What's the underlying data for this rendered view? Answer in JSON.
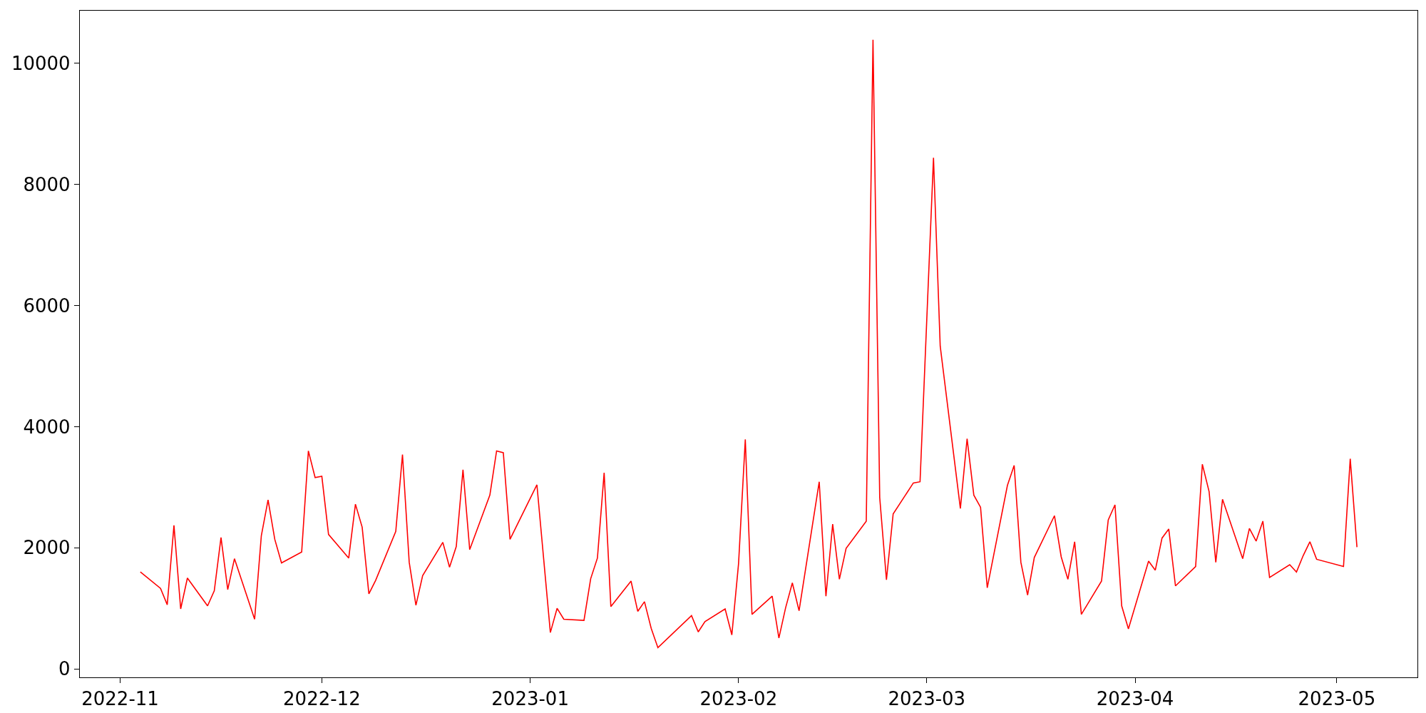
{
  "chart_data": {
    "type": "line",
    "grid": false,
    "marker": "none",
    "line_style": "solid",
    "xlim": [
      "2022-10-26",
      "2023-05-13"
    ],
    "xticks": [
      {
        "value": "2022-11-01",
        "label": "2022-11"
      },
      {
        "value": "2022-12-01",
        "label": "2022-12"
      },
      {
        "value": "2023-01-01",
        "label": "2023-01"
      },
      {
        "value": "2023-02-01",
        "label": "2023-02"
      },
      {
        "value": "2023-03-01",
        "label": "2023-03"
      },
      {
        "value": "2023-04-01",
        "label": "2023-04"
      },
      {
        "value": "2023-05-01",
        "label": "2023-05"
      }
    ],
    "ylim": [
      -140,
      10870
    ],
    "yticks": [
      0,
      2000,
      4000,
      6000,
      8000,
      10000
    ],
    "x": [
      "2022-11-04",
      "2022-11-07",
      "2022-11-08",
      "2022-11-09",
      "2022-11-10",
      "2022-11-11",
      "2022-11-14",
      "2022-11-15",
      "2022-11-16",
      "2022-11-17",
      "2022-11-18",
      "2022-11-21",
      "2022-11-22",
      "2022-11-23",
      "2022-11-24",
      "2022-11-25",
      "2022-11-28",
      "2022-11-29",
      "2022-11-30",
      "2022-12-01",
      "2022-12-02",
      "2022-12-05",
      "2022-12-06",
      "2022-12-07",
      "2022-12-08",
      "2022-12-09",
      "2022-12-12",
      "2022-12-13",
      "2022-12-14",
      "2022-12-15",
      "2022-12-16",
      "2022-12-19",
      "2022-12-20",
      "2022-12-21",
      "2022-12-22",
      "2022-12-23",
      "2022-12-26",
      "2022-12-27",
      "2022-12-28",
      "2022-12-29",
      "2023-01-02",
      "2023-01-04",
      "2023-01-05",
      "2023-01-06",
      "2023-01-09",
      "2023-01-10",
      "2023-01-11",
      "2023-01-12",
      "2023-01-13",
      "2023-01-16",
      "2023-01-17",
      "2023-01-18",
      "2023-01-19",
      "2023-01-20",
      "2023-01-25",
      "2023-01-26",
      "2023-01-27",
      "2023-01-30",
      "2023-01-31",
      "2023-02-01",
      "2023-02-02",
      "2023-02-03",
      "2023-02-06",
      "2023-02-07",
      "2023-02-08",
      "2023-02-09",
      "2023-02-10",
      "2023-02-13",
      "2023-02-14",
      "2023-02-15",
      "2023-02-16",
      "2023-02-17",
      "2023-02-20",
      "2023-02-21",
      "2023-02-22",
      "2023-02-23",
      "2023-02-24",
      "2023-02-27",
      "2023-02-28",
      "2023-03-02",
      "2023-03-03",
      "2023-03-06",
      "2023-03-07",
      "2023-03-08",
      "2023-03-09",
      "2023-03-10",
      "2023-03-13",
      "2023-03-14",
      "2023-03-15",
      "2023-03-16",
      "2023-03-17",
      "2023-03-20",
      "2023-03-21",
      "2023-03-22",
      "2023-03-23",
      "2023-03-24",
      "2023-03-27",
      "2023-03-28",
      "2023-03-29",
      "2023-03-30",
      "2023-03-31",
      "2023-04-03",
      "2023-04-04",
      "2023-04-05",
      "2023-04-06",
      "2023-04-07",
      "2023-04-10",
      "2023-04-11",
      "2023-04-12",
      "2023-04-13",
      "2023-04-14",
      "2023-04-17",
      "2023-04-18",
      "2023-04-19",
      "2023-04-20",
      "2023-04-21",
      "2023-04-24",
      "2023-04-25",
      "2023-04-26",
      "2023-04-27",
      "2023-04-28",
      "2023-05-02",
      "2023-05-03",
      "2023-05-04"
    ],
    "series": [
      {
        "color": "#ff0000",
        "values": [
          1600,
          1330,
          1060,
          2370,
          990,
          1500,
          1040,
          1290,
          2170,
          1310,
          1820,
          820,
          2200,
          2790,
          2140,
          1750,
          1930,
          3600,
          3160,
          3180,
          2220,
          1830,
          2720,
          2340,
          1240,
          1460,
          2270,
          3540,
          1760,
          1050,
          1540,
          2090,
          1680,
          2020,
          3290,
          1970,
          2870,
          3600,
          3570,
          2140,
          3040,
          600,
          1000,
          820,
          800,
          1490,
          1830,
          3240,
          1030,
          1450,
          950,
          1110,
          670,
          350,
          880,
          610,
          780,
          990,
          560,
          1740,
          3790,
          900,
          1200,
          510,
          1010,
          1420,
          960,
          3090,
          1200,
          2390,
          1480,
          1990,
          2440,
          10390,
          2830,
          1470,
          2560,
          3070,
          3090,
          8440,
          5330,
          2650,
          3800,
          2870,
          2670,
          1340,
          3030,
          3360,
          1760,
          1220,
          1840,
          2530,
          1850,
          1480,
          2100,
          900,
          1450,
          2460,
          2710,
          1040,
          660,
          1780,
          1630,
          2160,
          2310,
          1370,
          1690,
          3380,
          2930,
          1760,
          2800,
          1820,
          2320,
          2110,
          2440,
          1510,
          1720,
          1600,
          1870,
          2100,
          1810,
          1690,
          3470,
          2010
        ]
      }
    ]
  }
}
